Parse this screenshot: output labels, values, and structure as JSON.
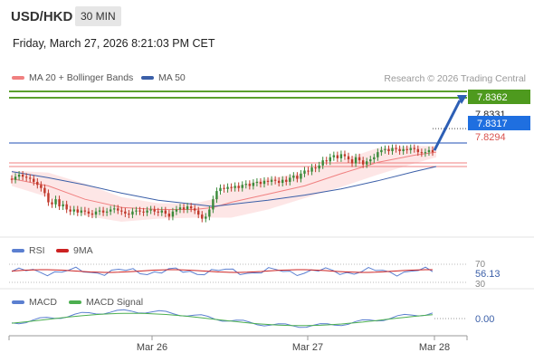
{
  "header": {
    "symbol": "USD/HKD",
    "interval": "30 MIN",
    "datetime": "Friday, March 27, 2026 8:21:03 PM CET"
  },
  "legend": {
    "ma20_label": "MA 20 + Bollinger Bands",
    "ma50_label": "MA 50",
    "credit": "Research © 2026 Trading Central",
    "rsi_label": "RSI",
    "rsi_ma_label": "9MA",
    "macd_label": "MACD",
    "macd_signal_label": "MACD Signal"
  },
  "colors": {
    "up": "#3a8a3a",
    "down": "#c0392b",
    "ma20": "#f08080",
    "ma50": "#3b5fa8",
    "bollinger_fill": "#fde2e2",
    "resistance": "#5aa02c",
    "support": "#f08080",
    "price_line": "#1f4fb5",
    "rsi": "#5b7fd0",
    "rsi_ma": "#cc2222",
    "macd": "#5b7fd0",
    "macd_signal": "#4caf50"
  },
  "chart_data": {
    "type": "candlestick",
    "x_ticks": [
      "Mar 26",
      "Mar 27",
      "Mar 28"
    ],
    "ylim": [
      7.8225,
      7.837
    ],
    "price_levels": [
      {
        "name": "resistance",
        "value": "7.8362",
        "color": "#5aa02c",
        "label_bg": "#4e9a1e"
      },
      {
        "name": "last",
        "value": "7.8331",
        "color": "#222222",
        "label_bg": "#ffffff"
      },
      {
        "name": "current",
        "value": "7.8317",
        "color": "#1f4fb5",
        "label_bg": "#1f6fe0"
      },
      {
        "name": "support",
        "value": "7.8294",
        "color": "#f08080",
        "label_bg": "#ffffff"
      }
    ],
    "candles": [
      [
        7.8282,
        7.8281
      ],
      [
        7.8281,
        7.8284
      ],
      [
        7.8284,
        7.8286
      ],
      [
        7.8286,
        7.8284
      ],
      [
        7.8284,
        7.8283
      ],
      [
        7.8283,
        7.8282
      ],
      [
        7.8282,
        7.8279
      ],
      [
        7.8279,
        7.8276
      ],
      [
        7.8276,
        7.8273
      ],
      [
        7.8273,
        7.8268
      ],
      [
        7.8268,
        7.8259
      ],
      [
        7.8259,
        7.8257
      ],
      [
        7.8257,
        7.8262
      ],
      [
        7.8262,
        7.8255
      ],
      [
        7.8255,
        7.8257
      ],
      [
        7.8257,
        7.8252
      ],
      [
        7.8252,
        7.825
      ],
      [
        7.825,
        7.8252
      ],
      [
        7.8252,
        7.8249
      ],
      [
        7.8249,
        7.8251
      ],
      [
        7.8251,
        7.825
      ],
      [
        7.825,
        7.8248
      ],
      [
        7.8248,
        7.8247
      ],
      [
        7.8247,
        7.825
      ],
      [
        7.825,
        7.8251
      ],
      [
        7.8251,
        7.8249
      ],
      [
        7.8249,
        7.825
      ],
      [
        7.825,
        7.8252
      ],
      [
        7.8252,
        7.8253
      ],
      [
        7.8253,
        7.8251
      ],
      [
        7.8251,
        7.825
      ],
      [
        7.825,
        7.8248
      ],
      [
        7.8248,
        7.8247
      ],
      [
        7.8247,
        7.825
      ],
      [
        7.825,
        7.8251
      ],
      [
        7.8251,
        7.825
      ],
      [
        7.825,
        7.8249
      ],
      [
        7.8249,
        7.8251
      ],
      [
        7.8251,
        7.8252
      ],
      [
        7.8252,
        7.825
      ],
      [
        7.825,
        7.8249
      ],
      [
        7.8249,
        7.8251
      ],
      [
        7.8251,
        7.8248
      ],
      [
        7.8248,
        7.8245
      ],
      [
        7.8245,
        7.825
      ],
      [
        7.825,
        7.8252
      ],
      [
        7.8252,
        7.8254
      ],
      [
        7.8254,
        7.8252
      ],
      [
        7.8252,
        7.8255
      ],
      [
        7.8255,
        7.8253
      ],
      [
        7.8253,
        7.8251
      ],
      [
        7.8251,
        7.8247
      ],
      [
        7.8247,
        7.8243
      ],
      [
        7.8243,
        7.8245
      ],
      [
        7.8245,
        7.8252
      ],
      [
        7.8252,
        7.8262
      ],
      [
        7.8262,
        7.827
      ],
      [
        7.827,
        7.8273
      ],
      [
        7.8273,
        7.8272
      ],
      [
        7.8272,
        7.8274
      ],
      [
        7.8274,
        7.8273
      ],
      [
        7.8273,
        7.8275
      ],
      [
        7.8275,
        7.8273
      ],
      [
        7.8273,
        7.8276
      ],
      [
        7.8276,
        7.8277
      ],
      [
        7.8277,
        7.8275
      ],
      [
        7.8275,
        7.8278
      ],
      [
        7.8278,
        7.8279
      ],
      [
        7.8279,
        7.8277
      ],
      [
        7.8277,
        7.828
      ],
      [
        7.828,
        7.8279
      ],
      [
        7.8279,
        7.8281
      ],
      [
        7.8281,
        7.828
      ],
      [
        7.828,
        7.8278
      ],
      [
        7.8278,
        7.8281
      ],
      [
        7.8281,
        7.8279
      ],
      [
        7.8279,
        7.8283
      ],
      [
        7.8283,
        7.8285
      ],
      [
        7.8285,
        7.8282
      ],
      [
        7.8282,
        7.8287
      ],
      [
        7.8287,
        7.829
      ],
      [
        7.829,
        7.8289
      ],
      [
        7.8289,
        7.8293
      ],
      [
        7.8293,
        7.8292
      ],
      [
        7.8292,
        7.8295
      ],
      [
        7.8295,
        7.83
      ],
      [
        7.83,
        7.8299
      ],
      [
        7.8299,
        7.8303
      ],
      [
        7.8303,
        7.8305
      ],
      [
        7.8305,
        7.8302
      ],
      [
        7.8302,
        7.8306
      ],
      [
        7.8306,
        7.8304
      ],
      [
        7.8304,
        7.8301
      ],
      [
        7.8301,
        7.8297
      ],
      [
        7.8297,
        7.8303
      ],
      [
        7.8303,
        7.83
      ],
      [
        7.83,
        7.8296
      ],
      [
        7.8296,
        7.8299
      ],
      [
        7.8299,
        7.8301
      ],
      [
        7.8301,
        7.8303
      ],
      [
        7.8303,
        7.8308
      ],
      [
        7.8308,
        7.831
      ],
      [
        7.831,
        7.8311
      ],
      [
        7.8311,
        7.8309
      ],
      [
        7.8309,
        7.8312
      ],
      [
        7.8312,
        7.8311
      ],
      [
        7.8311,
        7.8309
      ],
      [
        7.8309,
        7.8311
      ],
      [
        7.8311,
        7.831
      ],
      [
        7.831,
        7.8312
      ],
      [
        7.8312,
        7.8311
      ],
      [
        7.8311,
        7.8308
      ],
      [
        7.8308,
        7.8307
      ],
      [
        7.8307,
        7.8308
      ],
      [
        7.8308,
        7.831
      ],
      [
        7.831,
        7.8308
      ]
    ],
    "candle_wick": 0.00035,
    "ma20": [
      [
        0,
        7.8282
      ],
      [
        10,
        7.8275
      ],
      [
        20,
        7.8262
      ],
      [
        30,
        7.8254
      ],
      [
        40,
        7.8252
      ],
      [
        50,
        7.8252
      ],
      [
        55,
        7.8254
      ],
      [
        60,
        7.8259
      ],
      [
        70,
        7.8267
      ],
      [
        80,
        7.8275
      ],
      [
        90,
        7.8287
      ],
      [
        100,
        7.8298
      ],
      [
        110,
        7.8305
      ],
      [
        116,
        7.8308
      ]
    ],
    "ma50": [
      [
        0,
        7.8289
      ],
      [
        10,
        7.8283
      ],
      [
        20,
        7.8276
      ],
      [
        30,
        7.8268
      ],
      [
        40,
        7.8261
      ],
      [
        50,
        7.8257
      ],
      [
        55,
        7.8255
      ],
      [
        60,
        7.8257
      ],
      [
        70,
        7.8261
      ],
      [
        80,
        7.8266
      ],
      [
        90,
        7.8272
      ],
      [
        100,
        7.828
      ],
      [
        110,
        7.8289
      ],
      [
        116,
        7.8294
      ]
    ],
    "bb_upper": [
      [
        0,
        7.829
      ],
      [
        10,
        7.8288
      ],
      [
        20,
        7.8277
      ],
      [
        30,
        7.8264
      ],
      [
        40,
        7.8258
      ],
      [
        50,
        7.8258
      ],
      [
        55,
        7.8262
      ],
      [
        60,
        7.8274
      ],
      [
        70,
        7.8282
      ],
      [
        80,
        7.8288
      ],
      [
        90,
        7.83
      ],
      [
        100,
        7.8312
      ],
      [
        110,
        7.8314
      ],
      [
        116,
        7.8314
      ]
    ],
    "bb_lower": [
      [
        0,
        7.8275
      ],
      [
        10,
        7.8264
      ],
      [
        20,
        7.8246
      ],
      [
        30,
        7.824
      ],
      [
        40,
        7.8243
      ],
      [
        50,
        7.8244
      ],
      [
        55,
        7.8244
      ],
      [
        60,
        7.8244
      ],
      [
        70,
        7.8252
      ],
      [
        80,
        7.8263
      ],
      [
        90,
        7.8274
      ],
      [
        100,
        7.8286
      ],
      [
        110,
        7.8297
      ],
      [
        116,
        7.8303
      ]
    ],
    "rsi": {
      "value": "56.13",
      "levels": [
        "70",
        "30"
      ],
      "ylim": [
        30,
        70
      ]
    },
    "macd": {
      "value": "0.00"
    }
  }
}
